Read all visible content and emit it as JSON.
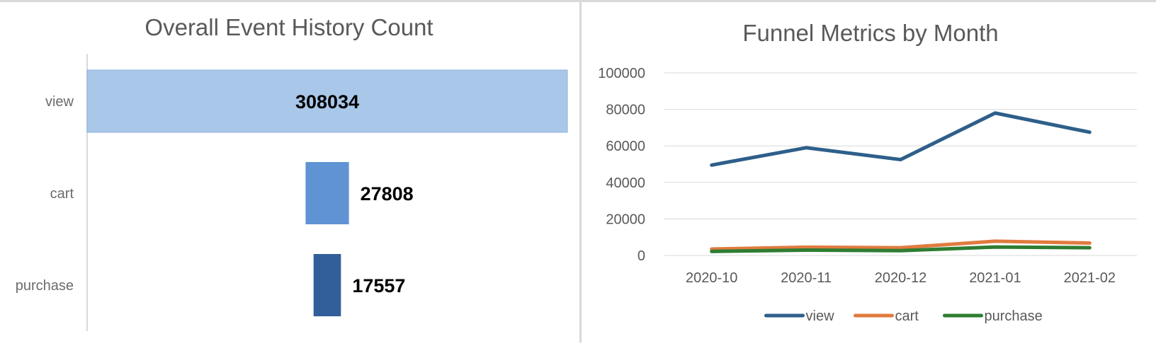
{
  "chart_data": [
    {
      "type": "bar",
      "orientation": "horizontal",
      "layout": "funnel",
      "title": "Overall Event History Count",
      "categories": [
        "view",
        "cart",
        "purchase"
      ],
      "values": [
        308034,
        27808,
        17557
      ],
      "colors": [
        "#a9c7e8",
        "#5f93d3",
        "#325f99"
      ],
      "grid": false,
      "legend": "none"
    },
    {
      "type": "line",
      "title": "Funnel Metrics by Month",
      "x": [
        "2020-10",
        "2020-11",
        "2020-12",
        "2021-01",
        "2021-02"
      ],
      "series": [
        {
          "name": "view",
          "color": "#2e5f8a",
          "values": [
            49500,
            59000,
            52500,
            78000,
            67500
          ]
        },
        {
          "name": "cart",
          "color": "#e07b3f",
          "values": [
            3500,
            4500,
            4200,
            7800,
            6800
          ]
        },
        {
          "name": "purchase",
          "color": "#2e7d32",
          "values": [
            2200,
            2900,
            2600,
            4600,
            4200
          ]
        }
      ],
      "ylim": [
        0,
        100000
      ],
      "yticks": [
        0,
        20000,
        40000,
        60000,
        80000,
        100000
      ],
      "ytick_labels": [
        "0",
        "20000",
        "40000",
        "60000",
        "80000",
        "100000"
      ],
      "grid": true,
      "legend": "bottom"
    }
  ]
}
